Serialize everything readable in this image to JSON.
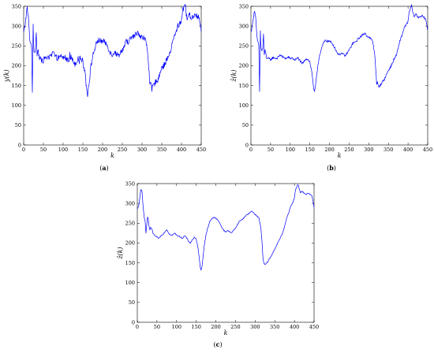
{
  "chart_data": [
    {
      "type": "line",
      "caption": "a",
      "xlabel": "k",
      "ylabel": "y(k)",
      "xlim": [
        0,
        450
      ],
      "ylim": [
        0,
        350
      ],
      "xticks": [
        0,
        50,
        100,
        150,
        200,
        250,
        300,
        350,
        400,
        450
      ],
      "yticks": [
        0,
        50,
        100,
        150,
        200,
        250,
        300,
        350
      ],
      "grid": false,
      "series": [
        {
          "color": "#0000ff",
          "noise": "high",
          "x": [
            0,
            3,
            6,
            9,
            12,
            15,
            18,
            20,
            22,
            24,
            25,
            26,
            28,
            30,
            32,
            34,
            36,
            38,
            40,
            45,
            50,
            55,
            60,
            65,
            70,
            75,
            80,
            85,
            90,
            95,
            100,
            105,
            110,
            115,
            120,
            125,
            130,
            135,
            140,
            145,
            150,
            152,
            155,
            158,
            160,
            162,
            164,
            166,
            170,
            175,
            180,
            185,
            190,
            195,
            200,
            205,
            210,
            215,
            220,
            225,
            230,
            235,
            240,
            245,
            250,
            255,
            260,
            265,
            270,
            275,
            280,
            285,
            290,
            295,
            300,
            305,
            310,
            315,
            318,
            320,
            322,
            325,
            328,
            330,
            335,
            340,
            345,
            350,
            355,
            360,
            365,
            370,
            375,
            380,
            385,
            390,
            395,
            400,
            403,
            406,
            409,
            412,
            415,
            420,
            425,
            430,
            435,
            440,
            445,
            448,
            450
          ],
          "y": [
            282,
            300,
            325,
            345,
            320,
            272,
            255,
            250,
            135,
            300,
            260,
            240,
            235,
            245,
            290,
            222,
            245,
            232,
            218,
            215,
            213,
            222,
            220,
            218,
            224,
            235,
            222,
            220,
            218,
            225,
            220,
            222,
            214,
            217,
            222,
            212,
            205,
            212,
            220,
            218,
            212,
            200,
            188,
            165,
            140,
            128,
            142,
            158,
            195,
            225,
            242,
            258,
            265,
            262,
            262,
            260,
            255,
            244,
            232,
            228,
            235,
            230,
            225,
            234,
            240,
            248,
            262,
            260,
            268,
            272,
            275,
            280,
            285,
            276,
            272,
            270,
            262,
            225,
            182,
            148,
            155,
            140,
            150,
            152,
            160,
            168,
            180,
            192,
            200,
            210,
            220,
            228,
            248,
            270,
            280,
            300,
            305,
            315,
            340,
            350,
            355,
            330,
            320,
            330,
            320,
            325,
            330,
            325,
            320,
            300,
            285
          ]
        }
      ]
    },
    {
      "type": "line",
      "caption": "b",
      "xlabel": "k",
      "ylabel": "ẑ(k)",
      "xlim": [
        0,
        450
      ],
      "ylim": [
        0,
        350
      ],
      "xticks": [
        0,
        50,
        100,
        150,
        200,
        250,
        300,
        350,
        400,
        450
      ],
      "yticks": [
        0,
        50,
        100,
        150,
        200,
        250,
        300,
        350
      ],
      "grid": false,
      "series": [
        {
          "color": "#0000ff",
          "noise": "medium",
          "x": [
            0,
            3,
            6,
            9,
            12,
            15,
            18,
            20,
            22,
            24,
            25,
            26,
            28,
            30,
            32,
            34,
            36,
            38,
            40,
            45,
            50,
            55,
            60,
            65,
            70,
            75,
            80,
            85,
            90,
            95,
            100,
            105,
            110,
            115,
            120,
            125,
            130,
            135,
            140,
            145,
            150,
            152,
            155,
            158,
            160,
            162,
            164,
            166,
            170,
            175,
            180,
            185,
            190,
            195,
            200,
            205,
            210,
            215,
            220,
            225,
            230,
            235,
            240,
            245,
            250,
            255,
            260,
            265,
            270,
            275,
            280,
            285,
            290,
            295,
            300,
            305,
            310,
            315,
            318,
            320,
            322,
            325,
            328,
            330,
            335,
            340,
            345,
            350,
            355,
            360,
            365,
            370,
            375,
            380,
            385,
            390,
            395,
            400,
            403,
            406,
            409,
            412,
            415,
            420,
            425,
            430,
            435,
            440,
            445,
            448,
            450
          ],
          "y": [
            285,
            298,
            320,
            340,
            322,
            275,
            258,
            252,
            135,
            290,
            258,
            242,
            238,
            244,
            280,
            225,
            240,
            230,
            220,
            218,
            215,
            220,
            220,
            218,
            222,
            228,
            222,
            220,
            218,
            222,
            218,
            220,
            215,
            216,
            220,
            212,
            205,
            210,
            218,
            216,
            210,
            198,
            185,
            160,
            138,
            135,
            145,
            162,
            198,
            228,
            244,
            258,
            264,
            262,
            262,
            258,
            252,
            242,
            232,
            228,
            232,
            228,
            225,
            232,
            240,
            248,
            258,
            258,
            264,
            270,
            274,
            278,
            282,
            276,
            272,
            268,
            262,
            230,
            190,
            152,
            158,
            146,
            150,
            152,
            160,
            166,
            178,
            188,
            196,
            206,
            218,
            226,
            244,
            266,
            278,
            296,
            302,
            312,
            335,
            345,
            352,
            335,
            325,
            330,
            322,
            324,
            326,
            322,
            318,
            300,
            290
          ]
        }
      ]
    },
    {
      "type": "line",
      "caption": "c",
      "xlabel": "k",
      "ylabel": "ẑ(k)",
      "xlim": [
        0,
        450
      ],
      "ylim": [
        0,
        350
      ],
      "xticks": [
        0,
        50,
        100,
        150,
        200,
        250,
        300,
        350,
        400,
        450
      ],
      "yticks": [
        0,
        50,
        100,
        150,
        200,
        250,
        300,
        350
      ],
      "grid": false,
      "series": [
        {
          "color": "#0000ff",
          "noise": "low",
          "x": [
            0,
            3,
            6,
            9,
            12,
            15,
            18,
            20,
            22,
            24,
            26,
            28,
            30,
            32,
            34,
            36,
            38,
            40,
            45,
            50,
            55,
            60,
            65,
            70,
            75,
            80,
            85,
            90,
            95,
            100,
            105,
            110,
            115,
            120,
            125,
            130,
            135,
            140,
            145,
            150,
            152,
            155,
            158,
            160,
            162,
            164,
            166,
            170,
            175,
            180,
            185,
            190,
            195,
            200,
            205,
            210,
            215,
            220,
            225,
            230,
            235,
            240,
            245,
            250,
            255,
            260,
            265,
            270,
            275,
            280,
            285,
            290,
            295,
            300,
            305,
            310,
            315,
            318,
            320,
            322,
            325,
            328,
            330,
            335,
            340,
            345,
            350,
            355,
            360,
            365,
            370,
            375,
            380,
            385,
            390,
            395,
            400,
            403,
            406,
            409,
            412,
            415,
            420,
            425,
            430,
            435,
            440,
            445,
            448,
            450
          ],
          "y": [
            285,
            292,
            310,
            335,
            330,
            290,
            262,
            255,
            225,
            245,
            265,
            258,
            242,
            232,
            240,
            236,
            232,
            225,
            218,
            215,
            212,
            218,
            222,
            228,
            234,
            225,
            220,
            220,
            225,
            220,
            218,
            215,
            212,
            218,
            214,
            205,
            200,
            208,
            214,
            210,
            200,
            185,
            160,
            140,
            132,
            138,
            152,
            190,
            222,
            240,
            255,
            262,
            265,
            262,
            258,
            250,
            240,
            232,
            228,
            232,
            228,
            226,
            232,
            238,
            246,
            255,
            258,
            262,
            268,
            272,
            275,
            280,
            278,
            272,
            268,
            262,
            235,
            195,
            160,
            150,
            145,
            148,
            150,
            158,
            165,
            175,
            185,
            195,
            205,
            215,
            225,
            242,
            262,
            275,
            292,
            300,
            315,
            335,
            342,
            348,
            338,
            328,
            330,
            325,
            322,
            326,
            322,
            318,
            302,
            290
          ]
        }
      ]
    }
  ]
}
